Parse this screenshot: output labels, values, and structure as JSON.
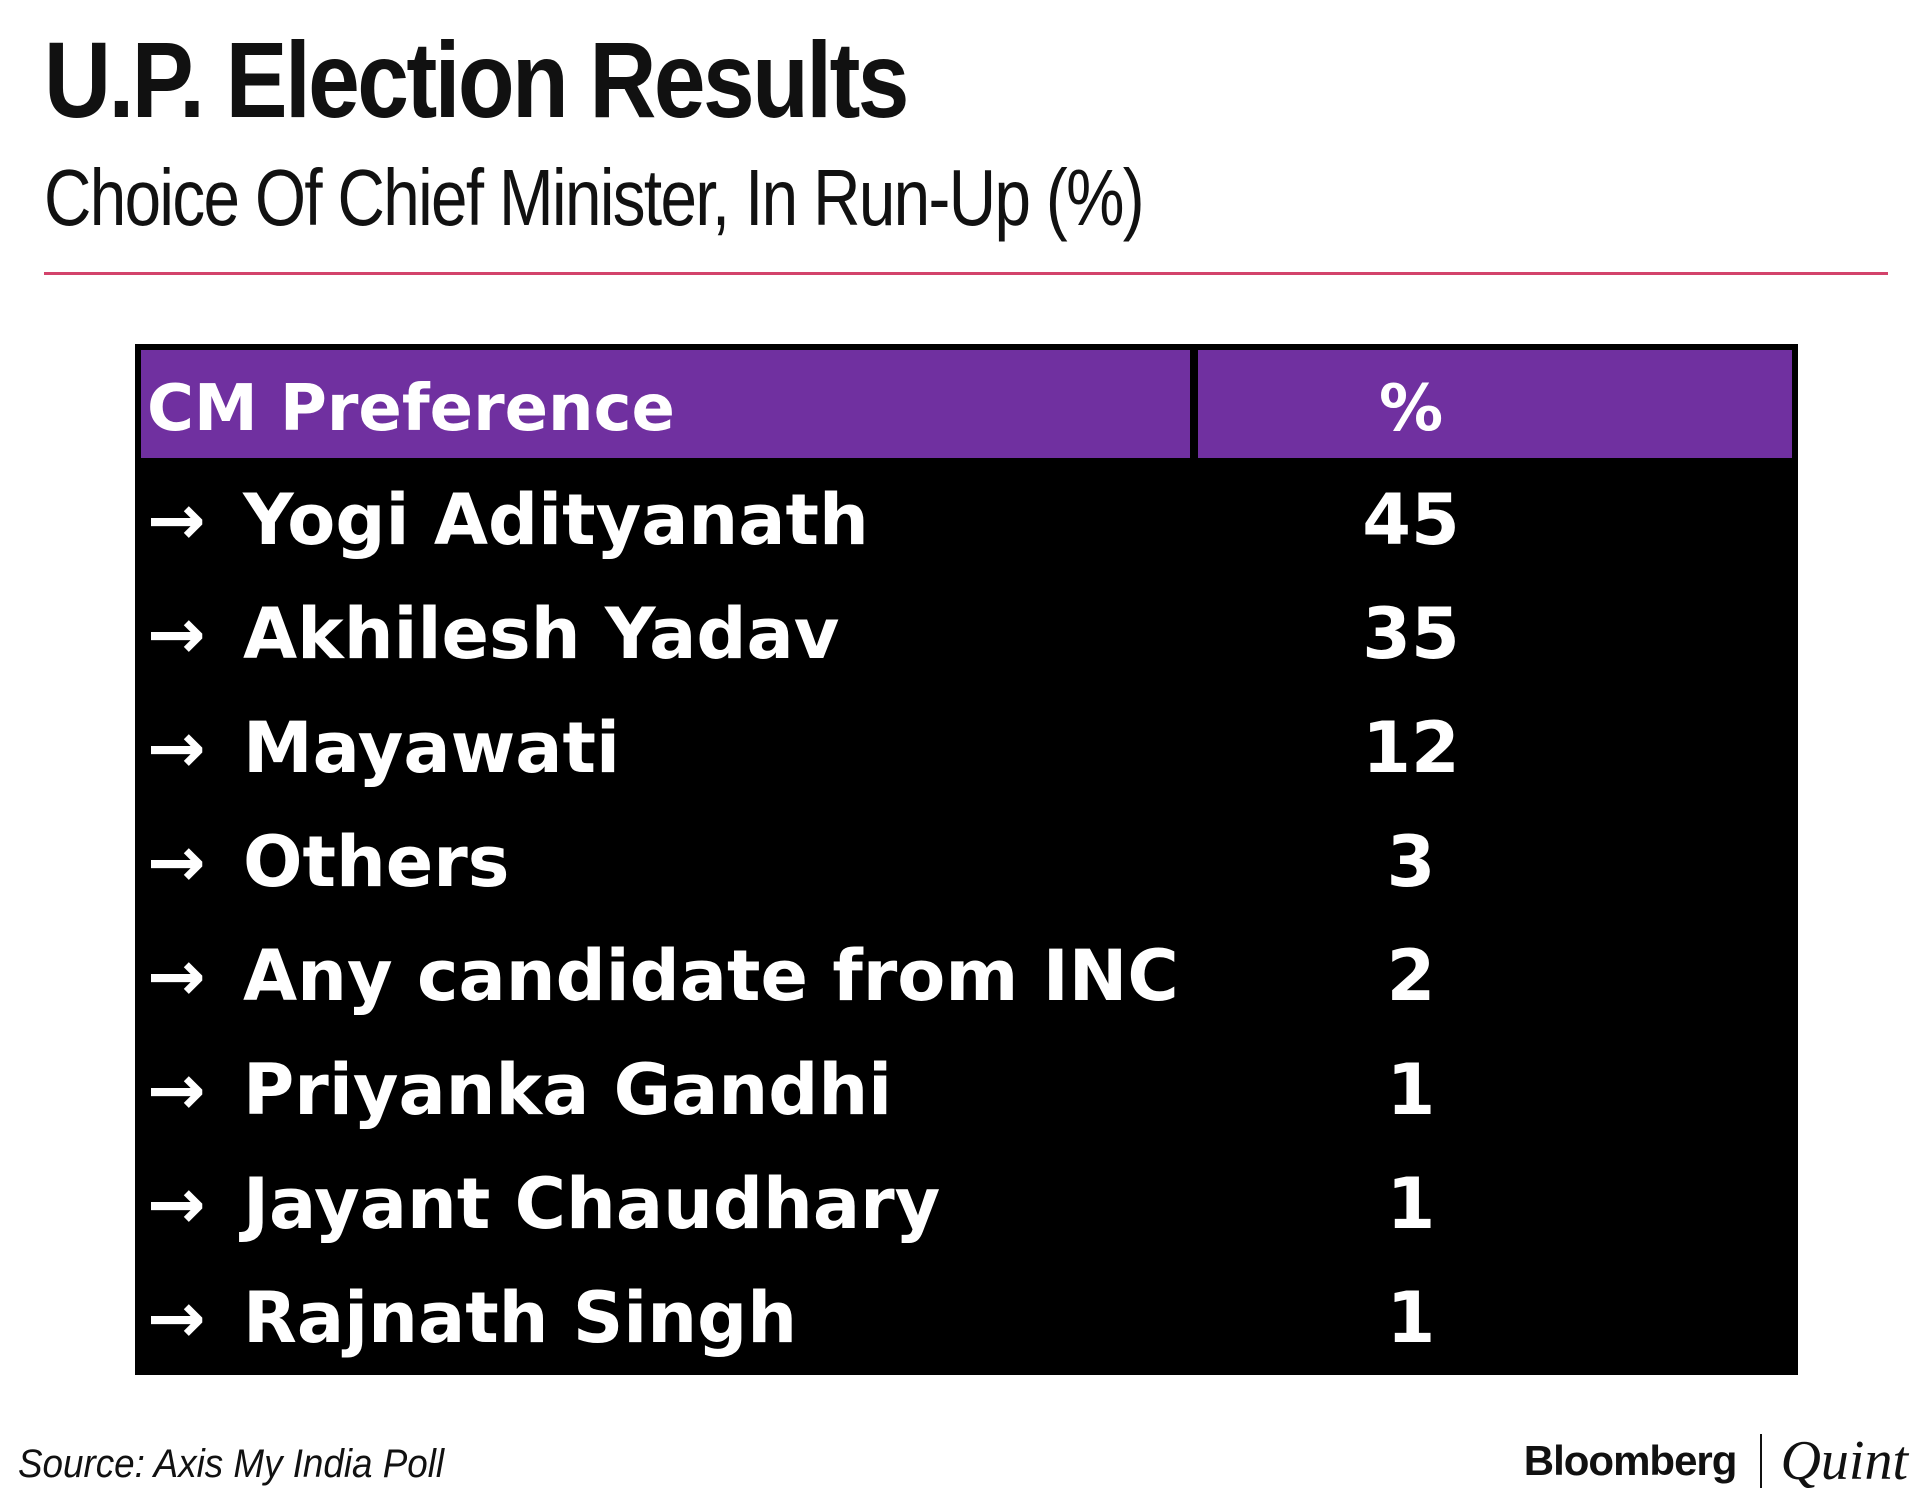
{
  "header": {
    "title": "U.P. Election Results",
    "subtitle": "Choice Of Chief Minister, In Run-Up (%)"
  },
  "footer": {
    "source": "Source: Axis My India Poll",
    "brand_primary": "Bloomberg",
    "brand_secondary": "Quint"
  },
  "colors": {
    "accent_rule": "#d3436b",
    "header_fill": "#7030a0",
    "table_background": "#000000",
    "table_text": "#ffffff"
  },
  "chart_data": {
    "type": "table",
    "columns": [
      "CM Preference",
      "%"
    ],
    "row_marker": "→",
    "rows": [
      {
        "name": "Yogi Adityanath",
        "value": 45
      },
      {
        "name": "Akhilesh Yadav",
        "value": 35
      },
      {
        "name": "Mayawati",
        "value": 12
      },
      {
        "name": "Others",
        "value": 3
      },
      {
        "name": "Any candidate from INC",
        "value": 2
      },
      {
        "name": "Priyanka Gandhi",
        "value": 1
      },
      {
        "name": "Jayant Chaudhary",
        "value": 1
      },
      {
        "name": "Rajnath Singh",
        "value": 1
      }
    ]
  }
}
